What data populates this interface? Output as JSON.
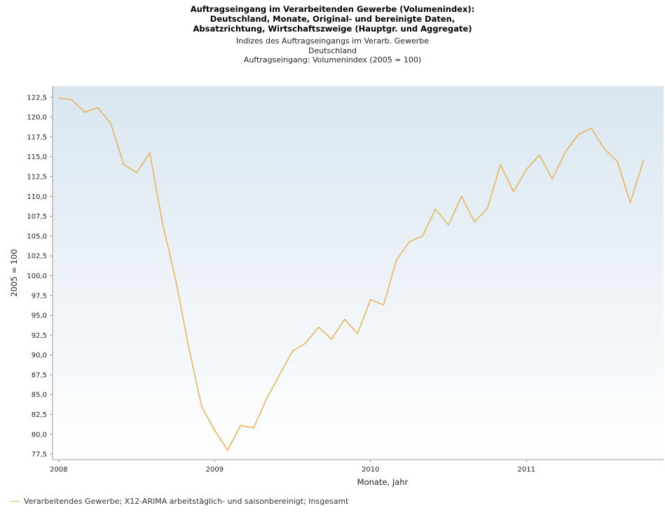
{
  "titles": {
    "title_lines": [
      "Auftragseingang im Verarbeitenden Gewerbe (Volumenindex):",
      "Deutschland, Monate, Original- und bereinigte Daten,",
      "Absatzrichtung, Wirtschaftszweige (Hauptgr. und Aggregate)"
    ],
    "subtitle_lines": [
      "Indizes des Auftragseingangs im Verarb. Gewerbe",
      "Deutschland",
      "Auftragseingang: Volumenindex (2005 = 100)"
    ]
  },
  "colors": {
    "line": "#E8B55A",
    "plot_top": "#D9E6F0",
    "plot_bottom": "#FFFFFF"
  },
  "chart_data": {
    "type": "line",
    "xlabel": "Monate, Jahr",
    "ylabel": "2005 = 100",
    "ylim": [
      76.8,
      123.9
    ],
    "xlim": [
      2007.96,
      2011.88
    ],
    "grid": false,
    "legend_position": "bottom-left",
    "y_ticks": [
      122.5,
      120.0,
      117.5,
      115.0,
      112.5,
      110.0,
      107.5,
      105.0,
      102.5,
      100.0,
      97.5,
      95.0,
      92.5,
      90.0,
      87.5,
      85.0,
      82.5,
      80.0,
      77.5
    ],
    "y_tick_labels": [
      "122,5",
      "120,0",
      "117,5",
      "115,0",
      "112,5",
      "110,0",
      "107,5",
      "105,0",
      "102,5",
      "100,0",
      "97,5",
      "95,0",
      "92,5",
      "90,0",
      "87,5",
      "85,0",
      "82,5",
      "80,0",
      "77,5"
    ],
    "x_ticks": [
      2008,
      2009,
      2010,
      2011
    ],
    "x_tick_labels": [
      "2008",
      "2009",
      "2010",
      "2011"
    ],
    "series": [
      {
        "name": "Verarbeitendes Gewerbe; X12-ARIMA arbeitstäglich- und saisonbereinigt; Insgesamt",
        "x": [
          "2008-01",
          "2008-02",
          "2008-03",
          "2008-04",
          "2008-05",
          "2008-06",
          "2008-07",
          "2008-08",
          "2008-09",
          "2008-10",
          "2008-11",
          "2008-12",
          "2009-01",
          "2009-02",
          "2009-03",
          "2009-04",
          "2009-05",
          "2009-06",
          "2009-07",
          "2009-08",
          "2009-09",
          "2009-10",
          "2009-11",
          "2009-12",
          "2010-01",
          "2010-02",
          "2010-03",
          "2010-04",
          "2010-05",
          "2010-06",
          "2010-07",
          "2010-08",
          "2010-09",
          "2010-10",
          "2010-11",
          "2010-12",
          "2011-01",
          "2011-02",
          "2011-03",
          "2011-04",
          "2011-05",
          "2011-06",
          "2011-07",
          "2011-08",
          "2011-09",
          "2011-10"
        ],
        "values": [
          122.4,
          122.2,
          120.6,
          121.2,
          119.2,
          114.0,
          113.0,
          115.5,
          106.5,
          99.5,
          91.0,
          83.5,
          80.5,
          78.0,
          81.1,
          80.8,
          84.5,
          87.5,
          90.5,
          91.5,
          93.5,
          92.0,
          94.5,
          92.7,
          97.0,
          96.3,
          102.0,
          104.3,
          105.0,
          108.4,
          106.4,
          110.0,
          106.8,
          108.5,
          114.0,
          110.6,
          113.4,
          115.2,
          112.2,
          115.6,
          117.8,
          118.6,
          116.0,
          114.4,
          109.2,
          114.5
        ]
      }
    ]
  }
}
